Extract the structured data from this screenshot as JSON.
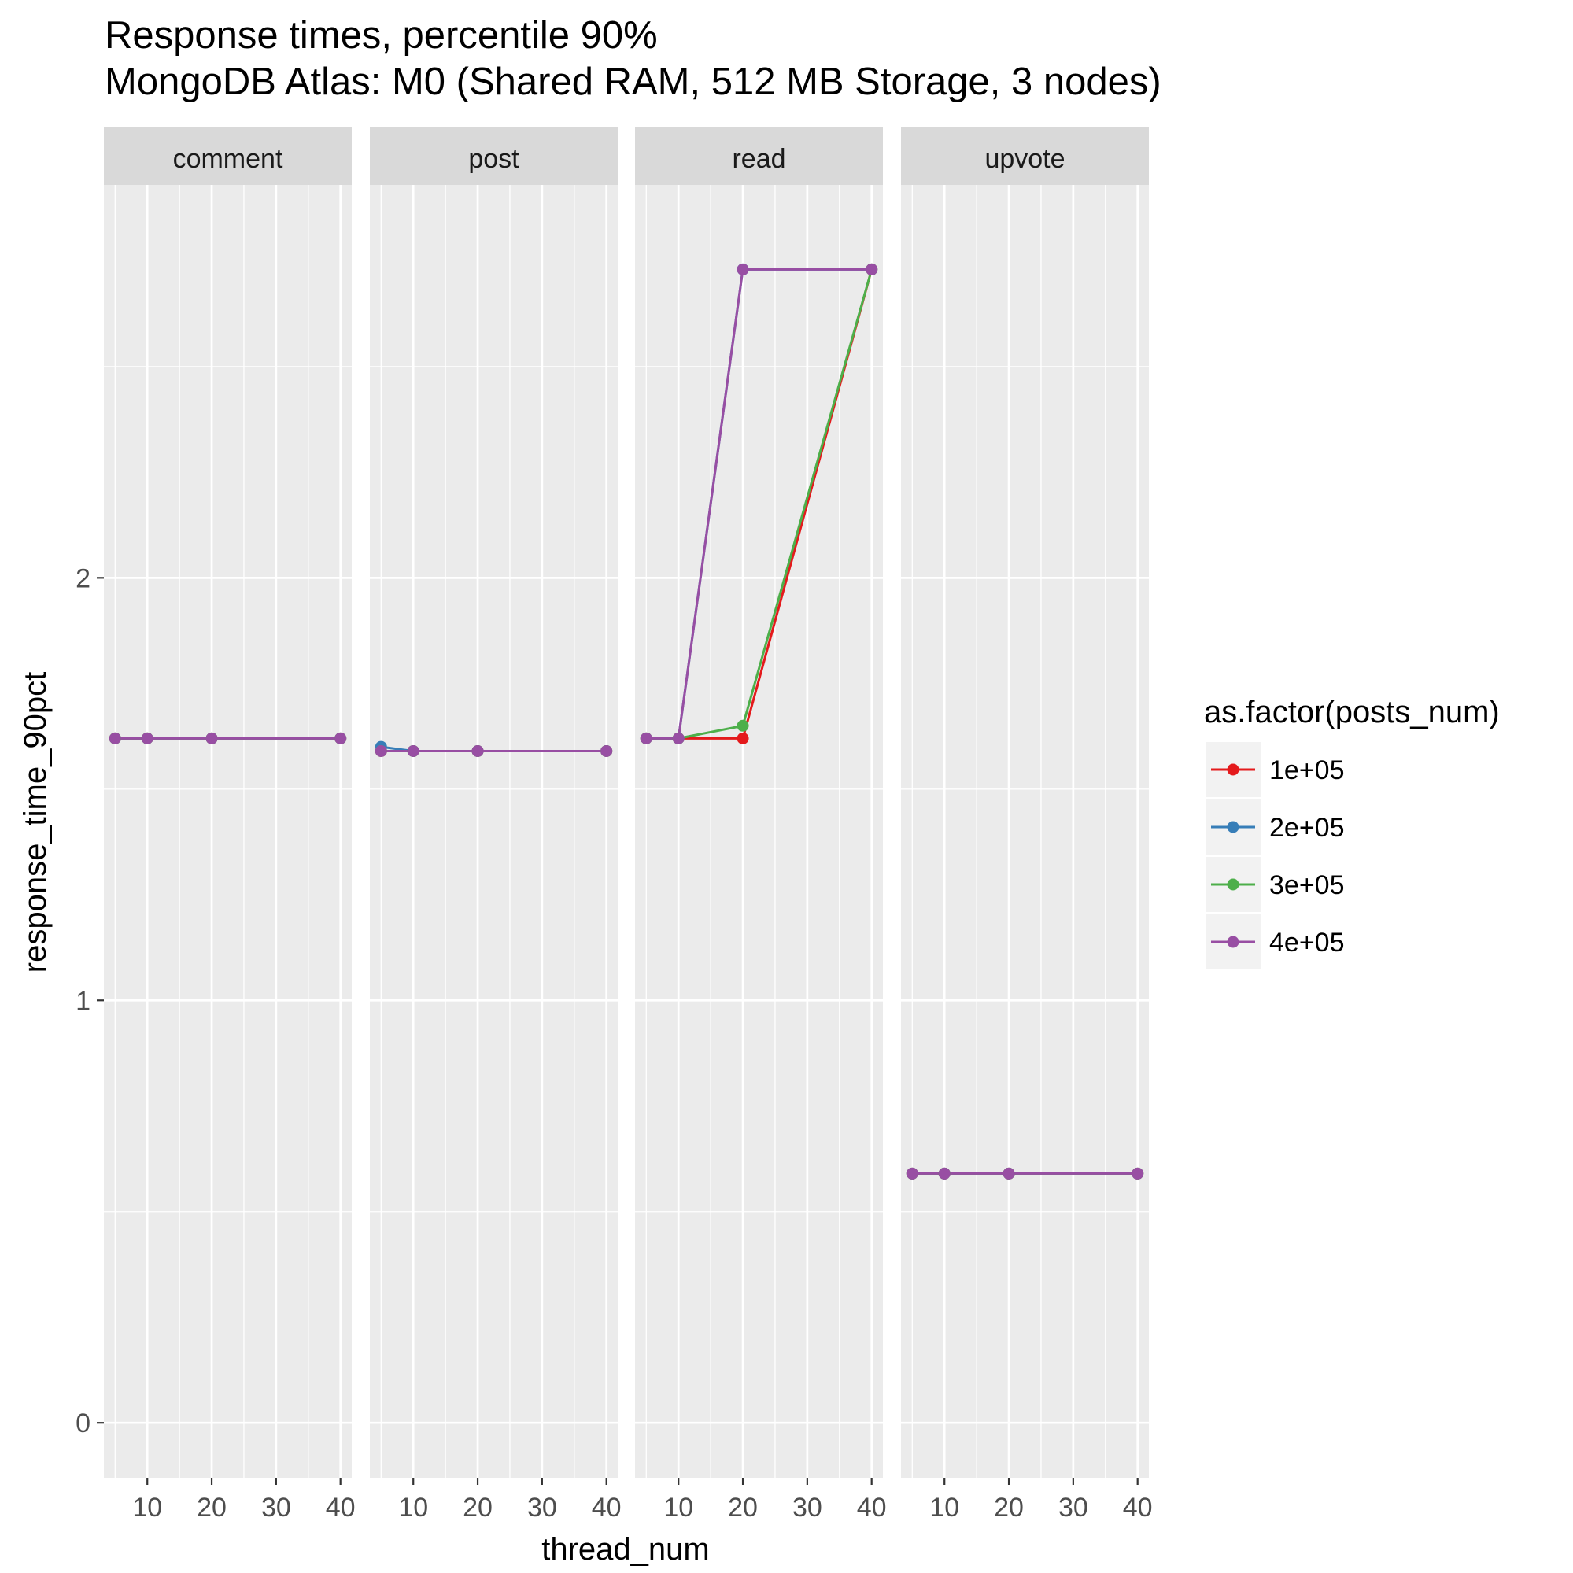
{
  "chart_data": {
    "type": "line",
    "title": "Response times, percentile 90%",
    "subtitle": "MongoDB Atlas: M0 (Shared RAM, 512 MB Storage, 3 nodes)",
    "xlabel": "thread_num",
    "ylabel": "response_time_90pct",
    "xlim": [
      3.25,
      41.75
    ],
    "ylim": [
      -0.13,
      2.93
    ],
    "x_ticks": [
      10,
      20,
      30,
      40
    ],
    "y_ticks": [
      0,
      1,
      2
    ],
    "x_tick_labels": [
      "10",
      "20",
      "30",
      "40"
    ],
    "y_tick_labels": [
      "0",
      "1",
      "2"
    ],
    "grid": true,
    "legend": {
      "title": "as.factor(posts_num)",
      "position": "right",
      "entries": [
        "1e+05",
        "2e+05",
        "3e+05",
        "4e+05"
      ]
    },
    "colors": {
      "1e+05": "#E41A1C",
      "2e+05": "#377EB8",
      "3e+05": "#4DAF4A",
      "4e+05": "#984EA3",
      "panel_bg": "#EBEBEB",
      "strip_bg": "#D9D9D9",
      "grid": "#FFFFFF"
    },
    "facets": [
      {
        "name": "comment",
        "series": [
          {
            "name": "1e+05",
            "x": [
              5,
              10,
              20,
              40
            ],
            "y": [
              1.62,
              1.62,
              1.62,
              1.62
            ]
          },
          {
            "name": "2e+05",
            "x": [
              5,
              10,
              20,
              40
            ],
            "y": [
              1.62,
              1.62,
              1.62,
              1.62
            ]
          },
          {
            "name": "3e+05",
            "x": [
              5,
              10,
              20,
              40
            ],
            "y": [
              1.62,
              1.62,
              1.62,
              1.62
            ]
          },
          {
            "name": "4e+05",
            "x": [
              5,
              10,
              20,
              40
            ],
            "y": [
              1.62,
              1.62,
              1.62,
              1.62
            ]
          }
        ]
      },
      {
        "name": "post",
        "series": [
          {
            "name": "1e+05",
            "x": [
              5,
              10,
              20,
              40
            ],
            "y": [
              1.59,
              1.59,
              1.59,
              1.59
            ]
          },
          {
            "name": "2e+05",
            "x": [
              5,
              10,
              20,
              40
            ],
            "y": [
              1.6,
              1.59,
              1.59,
              1.59
            ]
          },
          {
            "name": "3e+05",
            "x": [
              5,
              10,
              20,
              40
            ],
            "y": [
              1.59,
              1.59,
              1.59,
              1.59
            ]
          },
          {
            "name": "4e+05",
            "x": [
              5,
              10,
              20,
              40
            ],
            "y": [
              1.59,
              1.59,
              1.59,
              1.59
            ]
          }
        ]
      },
      {
        "name": "read",
        "series": [
          {
            "name": "1e+05",
            "x": [
              5,
              10,
              20,
              40
            ],
            "y": [
              1.62,
              1.62,
              1.62,
              2.73
            ]
          },
          {
            "name": "2e+05",
            "x": [
              5,
              10,
              20,
              40
            ],
            "y": [
              1.62,
              1.62,
              2.73,
              2.73
            ]
          },
          {
            "name": "3e+05",
            "x": [
              5,
              10,
              20,
              40
            ],
            "y": [
              1.62,
              1.62,
              1.65,
              2.73
            ]
          },
          {
            "name": "4e+05",
            "x": [
              5,
              10,
              20,
              40
            ],
            "y": [
              1.62,
              1.62,
              2.73,
              2.73
            ]
          }
        ]
      },
      {
        "name": "upvote",
        "series": [
          {
            "name": "1e+05",
            "x": [
              5,
              10,
              20,
              40
            ],
            "y": [
              0.59,
              0.59,
              0.59,
              0.59
            ]
          },
          {
            "name": "2e+05",
            "x": [
              5,
              10,
              20,
              40
            ],
            "y": [
              0.59,
              0.59,
              0.59,
              0.59
            ]
          },
          {
            "name": "3e+05",
            "x": [
              5,
              10,
              20,
              40
            ],
            "y": [
              0.59,
              0.59,
              0.59,
              0.59
            ]
          },
          {
            "name": "4e+05",
            "x": [
              5,
              10,
              20,
              40
            ],
            "y": [
              0.59,
              0.59,
              0.59,
              0.59
            ]
          }
        ]
      }
    ]
  }
}
